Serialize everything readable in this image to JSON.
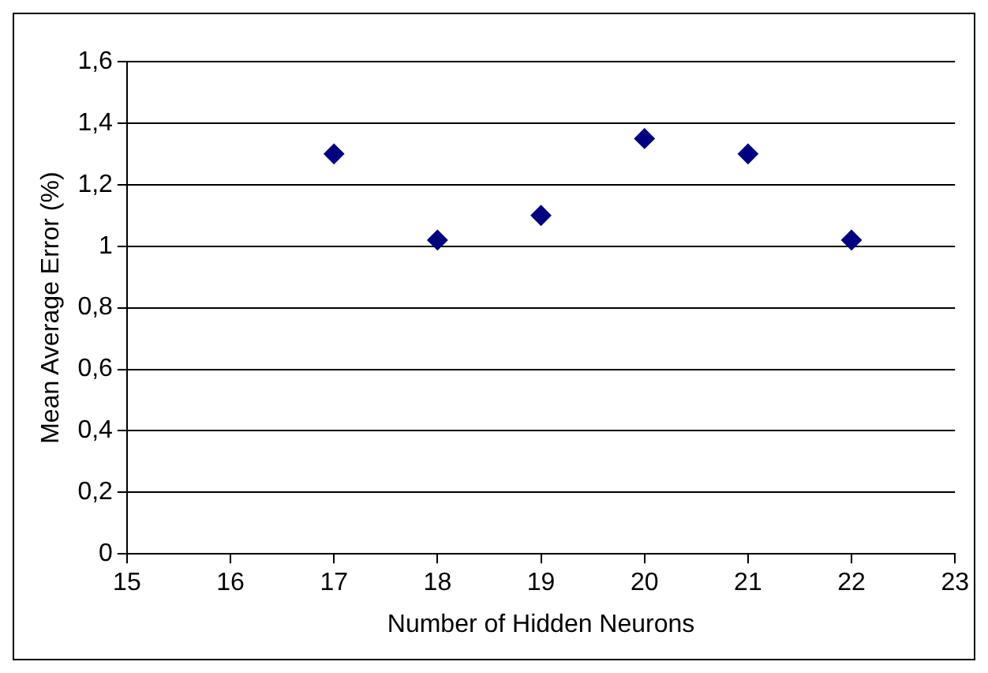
{
  "chart_data": {
    "type": "scatter",
    "xlabel": "Number of Hidden Neurons",
    "ylabel": "Mean Average Error (%)",
    "x": [
      17,
      18,
      19,
      20,
      21,
      22
    ],
    "series": [
      {
        "color": "#000080",
        "values": [
          1.3,
          1.02,
          1.1,
          1.35,
          1.3,
          1.02
        ]
      }
    ],
    "xlim": [
      15,
      23
    ],
    "xticks": [
      15,
      16,
      17,
      18,
      19,
      20,
      21,
      22,
      23
    ],
    "ylim": [
      0,
      1.6
    ],
    "yticks": [
      0,
      {
        "value": 0.2,
        "label": "0,2"
      },
      {
        "value": 0.4,
        "label": "0,4"
      },
      {
        "value": 0.6,
        "label": "0,6"
      },
      {
        "value": 0.8,
        "label": "0,8"
      },
      1,
      {
        "value": 1.2,
        "label": "1,2"
      },
      {
        "value": 1.4,
        "label": "1,4"
      },
      {
        "value": 1.6,
        "label": "1,6"
      }
    ],
    "grid": "y",
    "legend": false,
    "marker": "diamond"
  }
}
